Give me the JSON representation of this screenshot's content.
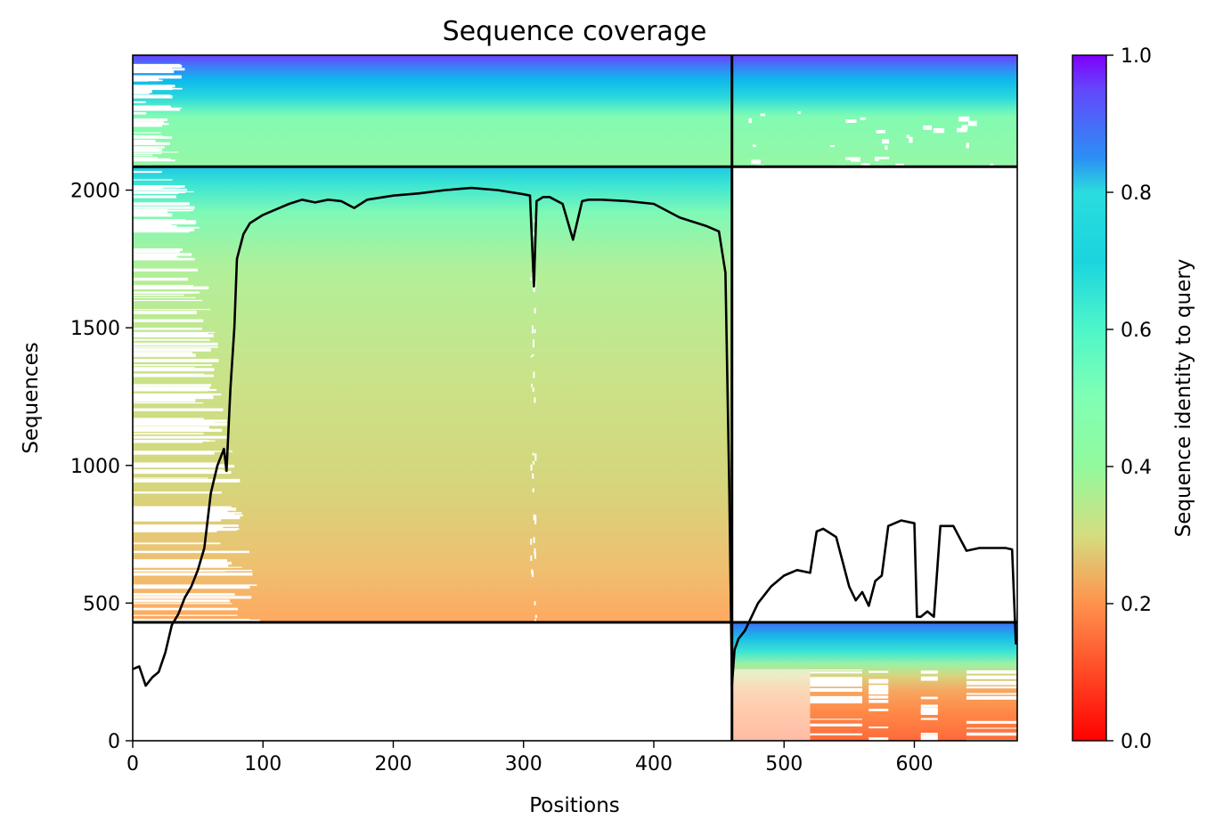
{
  "chart_data": {
    "type": "heatmap",
    "title": "Sequence coverage",
    "xlabel": "Positions",
    "ylabel": "Sequences",
    "xlim": [
      0,
      679
    ],
    "ylim": [
      0,
      2490
    ],
    "x_ticks": [
      "0",
      "100",
      "200",
      "300",
      "400",
      "500",
      "600"
    ],
    "y_ticks": [
      "0",
      "500",
      "1000",
      "1500",
      "2000"
    ],
    "colorbar": {
      "label": "Sequence identity to query",
      "ticks": [
        "0.0",
        "0.2",
        "0.4",
        "0.6",
        "0.8",
        "1.0"
      ],
      "range": [
        0,
        1
      ],
      "colormap": "rainbow_r"
    },
    "segment_boundaries": {
      "position_split": 460,
      "sequence_splits": [
        430,
        2085
      ]
    },
    "blocks": [
      {
        "name": "block-1-only",
        "x": [
          0,
          460
        ],
        "y": [
          430,
          2085
        ],
        "identity_range": [
          0.15,
          0.65
        ]
      },
      {
        "name": "block-both",
        "x": [
          0,
          679
        ],
        "y": [
          2085,
          2490
        ],
        "identity_range": [
          0.45,
          0.97
        ]
      },
      {
        "name": "block-2-only",
        "x": [
          460,
          679
        ],
        "y": [
          0,
          430
        ],
        "identity_range": [
          0.17,
          0.95
        ]
      }
    ],
    "coverage_line": {
      "x": [
        0,
        5,
        10,
        15,
        20,
        25,
        30,
        35,
        40,
        45,
        50,
        55,
        60,
        65,
        70,
        72,
        75,
        78,
        80,
        85,
        90,
        100,
        110,
        120,
        130,
        140,
        150,
        160,
        170,
        180,
        200,
        220,
        240,
        260,
        280,
        300,
        305,
        308,
        310,
        315,
        320,
        330,
        338,
        345,
        350,
        360,
        380,
        400,
        420,
        440,
        450,
        455,
        458,
        460,
        462,
        465,
        470,
        480,
        490,
        500,
        510,
        520,
        525,
        530,
        540,
        545,
        550,
        555,
        560,
        565,
        570,
        575,
        580,
        590,
        600,
        602,
        605,
        610,
        615,
        620,
        630,
        640,
        650,
        660,
        670,
        675,
        678
      ],
      "y": [
        260,
        270,
        200,
        230,
        250,
        320,
        420,
        460,
        520,
        560,
        620,
        700,
        900,
        1000,
        1060,
        980,
        1280,
        1500,
        1750,
        1840,
        1880,
        1910,
        1930,
        1950,
        1965,
        1955,
        1965,
        1960,
        1935,
        1965,
        1980,
        1988,
        2000,
        2008,
        2000,
        1985,
        1980,
        1650,
        1960,
        1975,
        1975,
        1950,
        1820,
        1960,
        1965,
        1965,
        1960,
        1950,
        1900,
        1870,
        1850,
        1700,
        900,
        200,
        330,
        370,
        400,
        500,
        560,
        600,
        620,
        610,
        760,
        770,
        740,
        650,
        560,
        510,
        540,
        490,
        580,
        600,
        780,
        800,
        790,
        450,
        450,
        470,
        450,
        780,
        780,
        690,
        700,
        700,
        700,
        695,
        350
      ]
    }
  }
}
